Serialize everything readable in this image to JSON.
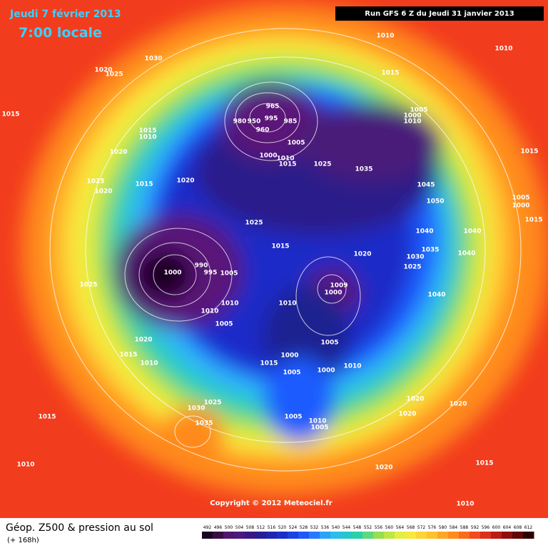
{
  "header": {
    "date": "Jeudi 7 février 2013",
    "time": "7:00 locale",
    "run": "Run GFS 6 Z du Jeudi 31 janvier 2013",
    "copyright": "Copyright © 2012 Meteociel.fr"
  },
  "footer": {
    "title": "Géop. Z500 & pression au sol",
    "lead": "(+ 168h)"
  },
  "isobar_labels": [
    "1010",
    "1010",
    "1030",
    "1020",
    "1025",
    "1015",
    "1015",
    "965",
    "980",
    "950",
    "995",
    "985",
    "960",
    "1005",
    "1000",
    "1010",
    "1015",
    "1010",
    "1005",
    "1000",
    "1010",
    "1015",
    "1025",
    "1035",
    "1020",
    "1015",
    "1025",
    "1020",
    "1015",
    "1020",
    "1045",
    "1050",
    "1005",
    "1000",
    "1015",
    "1025",
    "1040",
    "1040",
    "1015",
    "1035",
    "1020",
    "1030",
    "1040",
    "1025",
    "990",
    "1000",
    "995",
    "1005",
    "1009",
    "1000",
    "1025",
    "1040",
    "1010",
    "1010",
    "1010",
    "1005",
    "1020",
    "1005",
    "1015",
    "1000",
    "1010",
    "1015",
    "1010",
    "1005",
    "1000",
    "1020",
    "1020",
    "1025",
    "1030",
    "1020",
    "1015",
    "1035",
    "1005",
    "1010",
    "1005",
    "1020",
    "1015",
    "1010",
    "1010"
  ],
  "legend": {
    "values": [
      492,
      496,
      500,
      504,
      508,
      512,
      516,
      520,
      524,
      528,
      532,
      536,
      540,
      544,
      548,
      552,
      556,
      560,
      564,
      568,
      572,
      576,
      580,
      584,
      588,
      592,
      596,
      600,
      604,
      608,
      612
    ]
  }
}
